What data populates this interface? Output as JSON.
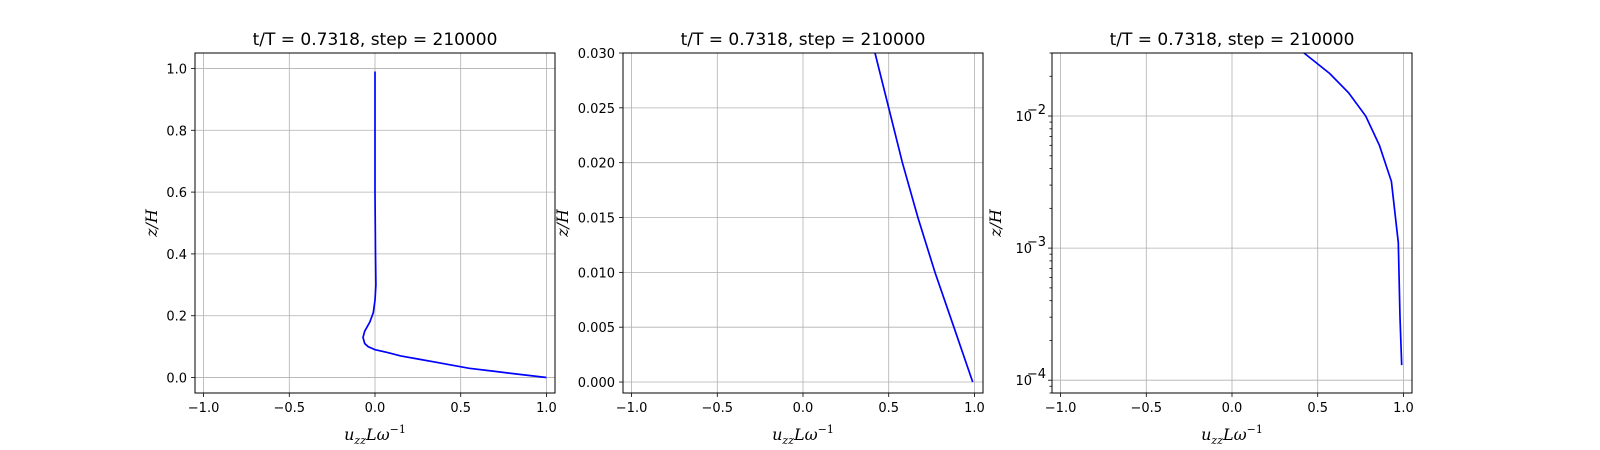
{
  "chart_data": [
    {
      "type": "line",
      "title": "t/T = 0.7318, step = 210000",
      "xlabel": "u_{zz}Lω^{-1}",
      "ylabel": "z/H",
      "xlim": [
        -1.05,
        1.05
      ],
      "ylim": [
        -0.05,
        1.05
      ],
      "yscale": "linear",
      "grid": true,
      "xticks": [
        -1.0,
        -0.5,
        0.0,
        0.5,
        1.0
      ],
      "xtick_labels": [
        "−1.0",
        "−0.5",
        "0.0",
        "0.5",
        "1.0"
      ],
      "yticks": [
        0.0,
        0.2,
        0.4,
        0.6,
        0.8,
        1.0
      ],
      "ytick_labels": [
        "0.0",
        "0.2",
        "0.4",
        "0.6",
        "0.8",
        "1.0"
      ],
      "series": [
        {
          "color": "#0000ff",
          "x": [
            1.0,
            0.85,
            0.7,
            0.55,
            0.45,
            0.35,
            0.25,
            0.15,
            0.08,
            0.0,
            -0.04,
            -0.06,
            -0.07,
            -0.06,
            -0.03,
            -0.01,
            0.0,
            0.005,
            0.003,
            0.0,
            0.0
          ],
          "y": [
            0.0,
            0.01,
            0.02,
            0.03,
            0.04,
            0.05,
            0.06,
            0.07,
            0.08,
            0.09,
            0.1,
            0.11,
            0.13,
            0.15,
            0.18,
            0.21,
            0.25,
            0.3,
            0.4,
            0.6,
            0.99
          ]
        }
      ]
    },
    {
      "type": "line",
      "title": "t/T = 0.7318, step = 210000",
      "xlabel": "u_{zz}Lω^{-1}",
      "ylabel": "z/H",
      "xlim": [
        -1.05,
        1.05
      ],
      "ylim": [
        -0.001,
        0.03
      ],
      "yscale": "linear",
      "grid": true,
      "xticks": [
        -1.0,
        -0.5,
        0.0,
        0.5,
        1.0
      ],
      "xtick_labels": [
        "−1.0",
        "−0.5",
        "0.0",
        "0.5",
        "1.0"
      ],
      "yticks": [
        0.0,
        0.005,
        0.01,
        0.015,
        0.02,
        0.025,
        0.03
      ],
      "ytick_labels": [
        "0.000",
        "0.005",
        "0.010",
        "0.015",
        "0.020",
        "0.025",
        "0.030"
      ],
      "series": [
        {
          "color": "#0000ff",
          "x": [
            0.99,
            0.88,
            0.77,
            0.67,
            0.58,
            0.5,
            0.42
          ],
          "y": [
            0.0,
            0.005,
            0.01,
            0.015,
            0.02,
            0.025,
            0.03
          ]
        }
      ]
    },
    {
      "type": "line",
      "title": "t/T = 0.7318, step = 210000",
      "xlabel": "u_{zz}Lω^{-1}",
      "ylabel": "z/H",
      "xlim": [
        -1.05,
        1.05
      ],
      "ylim": [
        8e-05,
        0.03
      ],
      "yscale": "log",
      "grid": true,
      "xticks": [
        -1.0,
        -0.5,
        0.0,
        0.5,
        1.0
      ],
      "xtick_labels": [
        "−1.0",
        "−0.5",
        "0.0",
        "0.5",
        "1.0"
      ],
      "yticks": [
        0.0001,
        0.001,
        0.01
      ],
      "ytick_labels": [
        "10",
        "10",
        "10"
      ],
      "ytick_exponents": [
        "−4",
        "−3",
        "−2"
      ],
      "series": [
        {
          "color": "#0000ff",
          "x": [
            0.99,
            0.98,
            0.97,
            0.93,
            0.86,
            0.78,
            0.68,
            0.57,
            0.42
          ],
          "y": [
            0.00013,
            0.0003,
            0.0011,
            0.0032,
            0.006,
            0.01,
            0.015,
            0.021,
            0.03
          ]
        }
      ]
    }
  ]
}
